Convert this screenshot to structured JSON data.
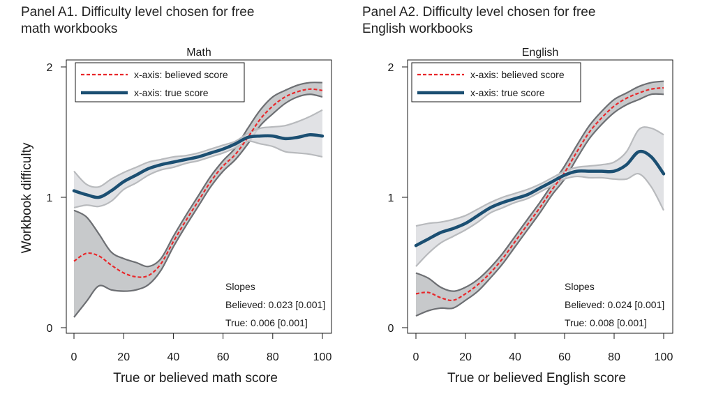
{
  "panels": [
    {
      "heading_line1": "Panel A1. Difficulty level chosen for free",
      "heading_line2": "math workbooks"
    },
    {
      "heading_line1": "Panel A2. Difficulty level chosen for free",
      "heading_line2": "English workbooks"
    }
  ],
  "chart_data": [
    {
      "type": "line",
      "title": "Math",
      "xlabel": "True or believed math score",
      "ylabel": "Workbook difficulty",
      "xlim": [
        0,
        100
      ],
      "ylim": [
        0,
        2
      ],
      "xticks": [
        0,
        20,
        40,
        60,
        80,
        100
      ],
      "yticks": [
        0,
        1,
        2
      ],
      "legend_position": "top-left",
      "series": [
        {
          "name": "x-axis: believed score",
          "style": "dashed",
          "color": "#e8272a",
          "x": [
            0,
            5,
            10,
            15,
            20,
            25,
            30,
            35,
            40,
            45,
            50,
            55,
            60,
            65,
            70,
            75,
            80,
            85,
            90,
            95,
            100
          ],
          "values": [
            0.51,
            0.57,
            0.55,
            0.48,
            0.42,
            0.39,
            0.4,
            0.49,
            0.66,
            0.82,
            0.97,
            1.12,
            1.24,
            1.33,
            1.46,
            1.6,
            1.7,
            1.77,
            1.81,
            1.83,
            1.82
          ],
          "ci_upper": [
            0.9,
            0.85,
            0.72,
            0.58,
            0.53,
            0.5,
            0.47,
            0.53,
            0.7,
            0.86,
            1.01,
            1.16,
            1.28,
            1.38,
            1.53,
            1.67,
            1.77,
            1.82,
            1.86,
            1.88,
            1.88
          ],
          "ci_lower": [
            0.08,
            0.2,
            0.32,
            0.29,
            0.28,
            0.29,
            0.33,
            0.44,
            0.62,
            0.78,
            0.93,
            1.08,
            1.2,
            1.29,
            1.41,
            1.55,
            1.64,
            1.72,
            1.77,
            1.79,
            1.77
          ]
        },
        {
          "name": "x-axis: true score",
          "style": "solid",
          "color": "#1b4f72",
          "x": [
            0,
            5,
            10,
            15,
            20,
            25,
            30,
            35,
            40,
            45,
            50,
            55,
            60,
            65,
            70,
            75,
            80,
            85,
            90,
            95,
            100
          ],
          "values": [
            1.05,
            1.02,
            1.0,
            1.05,
            1.12,
            1.17,
            1.22,
            1.25,
            1.27,
            1.29,
            1.31,
            1.34,
            1.37,
            1.41,
            1.46,
            1.47,
            1.47,
            1.45,
            1.46,
            1.48,
            1.47
          ],
          "ci_upper": [
            1.2,
            1.1,
            1.08,
            1.14,
            1.19,
            1.23,
            1.27,
            1.29,
            1.31,
            1.32,
            1.34,
            1.37,
            1.4,
            1.43,
            1.49,
            1.53,
            1.54,
            1.55,
            1.58,
            1.62,
            1.67
          ],
          "ci_lower": [
            0.92,
            0.94,
            0.93,
            0.97,
            1.06,
            1.11,
            1.17,
            1.21,
            1.23,
            1.26,
            1.28,
            1.31,
            1.34,
            1.38,
            1.43,
            1.41,
            1.39,
            1.35,
            1.34,
            1.33,
            1.31
          ]
        }
      ],
      "annotations": {
        "slopes_title": "Slopes",
        "believed": "Believed: 0.023 [0.001]",
        "true": "True: 0.006 [0.001]"
      }
    },
    {
      "type": "line",
      "title": "English",
      "xlabel": "True or believed English score",
      "ylabel": "",
      "xlim": [
        0,
        100
      ],
      "ylim": [
        0,
        2
      ],
      "xticks": [
        0,
        20,
        40,
        60,
        80,
        100
      ],
      "yticks": [
        0,
        1,
        2
      ],
      "legend_position": "top-left",
      "series": [
        {
          "name": "x-axis: believed score",
          "style": "dashed",
          "color": "#e8272a",
          "x": [
            0,
            5,
            10,
            15,
            20,
            25,
            30,
            35,
            40,
            45,
            50,
            55,
            60,
            65,
            70,
            75,
            80,
            85,
            90,
            95,
            100
          ],
          "values": [
            0.26,
            0.27,
            0.23,
            0.21,
            0.26,
            0.33,
            0.42,
            0.53,
            0.66,
            0.79,
            0.92,
            1.06,
            1.19,
            1.35,
            1.5,
            1.61,
            1.7,
            1.76,
            1.8,
            1.83,
            1.84
          ],
          "ci_upper": [
            0.42,
            0.38,
            0.31,
            0.28,
            0.31,
            0.37,
            0.46,
            0.57,
            0.7,
            0.83,
            0.96,
            1.1,
            1.24,
            1.4,
            1.55,
            1.66,
            1.75,
            1.8,
            1.85,
            1.88,
            1.89
          ],
          "ci_lower": [
            0.09,
            0.13,
            0.15,
            0.15,
            0.21,
            0.28,
            0.38,
            0.49,
            0.62,
            0.75,
            0.88,
            1.02,
            1.14,
            1.3,
            1.45,
            1.56,
            1.65,
            1.71,
            1.75,
            1.79,
            1.79
          ]
        },
        {
          "name": "x-axis: true score",
          "style": "solid",
          "color": "#1b4f72",
          "x": [
            0,
            5,
            10,
            15,
            20,
            25,
            30,
            35,
            40,
            45,
            50,
            55,
            60,
            65,
            70,
            75,
            80,
            85,
            90,
            95,
            100
          ],
          "values": [
            0.63,
            0.68,
            0.73,
            0.76,
            0.8,
            0.86,
            0.92,
            0.96,
            0.99,
            1.02,
            1.07,
            1.12,
            1.17,
            1.2,
            1.2,
            1.2,
            1.2,
            1.25,
            1.35,
            1.31,
            1.18
          ],
          "ci_upper": [
            0.78,
            0.8,
            0.81,
            0.83,
            0.86,
            0.91,
            0.96,
            1.0,
            1.03,
            1.06,
            1.1,
            1.15,
            1.2,
            1.23,
            1.24,
            1.25,
            1.27,
            1.35,
            1.52,
            1.53,
            1.48
          ],
          "ci_lower": [
            0.47,
            0.57,
            0.65,
            0.7,
            0.75,
            0.81,
            0.88,
            0.92,
            0.96,
            0.99,
            1.04,
            1.09,
            1.14,
            1.16,
            1.15,
            1.15,
            1.14,
            1.14,
            1.18,
            1.08,
            0.9
          ]
        }
      ],
      "annotations": {
        "slopes_title": "Slopes",
        "believed": "Believed: 0.024 [0.001]",
        "true": "True: 0.008 [0.001]"
      }
    }
  ]
}
